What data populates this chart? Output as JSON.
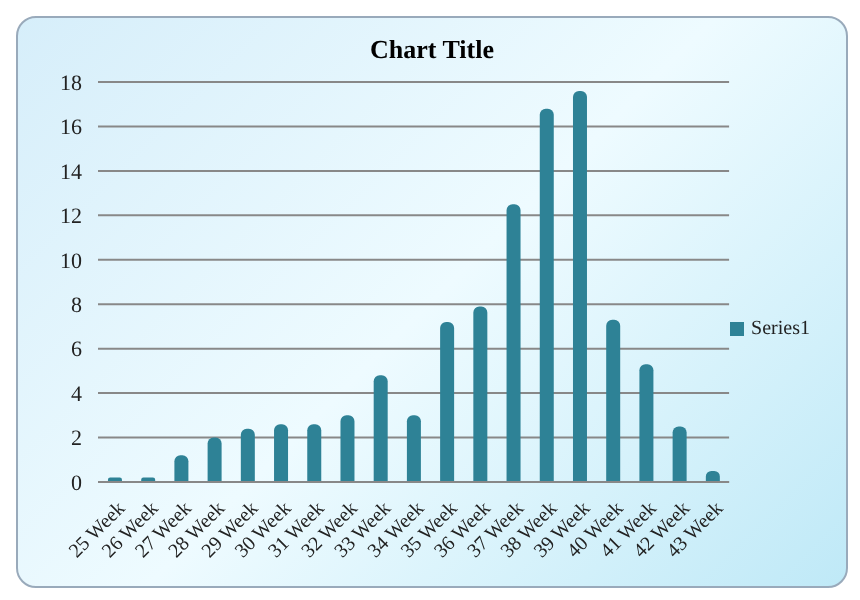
{
  "chart_data": {
    "type": "bar",
    "title": "Chart Title",
    "categories": [
      "25 Week",
      "26 Week",
      "27 Week",
      "28 Week",
      "29 Week",
      "30 Week",
      "31 Week",
      "32 Week",
      "33 Week",
      "34 Week",
      "35 Week",
      "36 Week",
      "37 Week",
      "38 Week",
      "39 Week",
      "40 Week",
      "41 Week",
      "42 Week",
      "43 Week"
    ],
    "series": [
      {
        "name": "Series1",
        "color": "#2e8296",
        "values": [
          0.2,
          0.2,
          1.2,
          2.0,
          2.4,
          2.6,
          2.6,
          3.0,
          4.8,
          3.0,
          7.2,
          7.9,
          12.5,
          16.8,
          17.6,
          7.3,
          5.3,
          2.5,
          0.5
        ]
      }
    ],
    "ylim": [
      0,
      18
    ],
    "yticks": [
      0,
      2,
      4,
      6,
      8,
      10,
      12,
      14,
      16,
      18
    ],
    "grid": "y",
    "legend": "right"
  }
}
